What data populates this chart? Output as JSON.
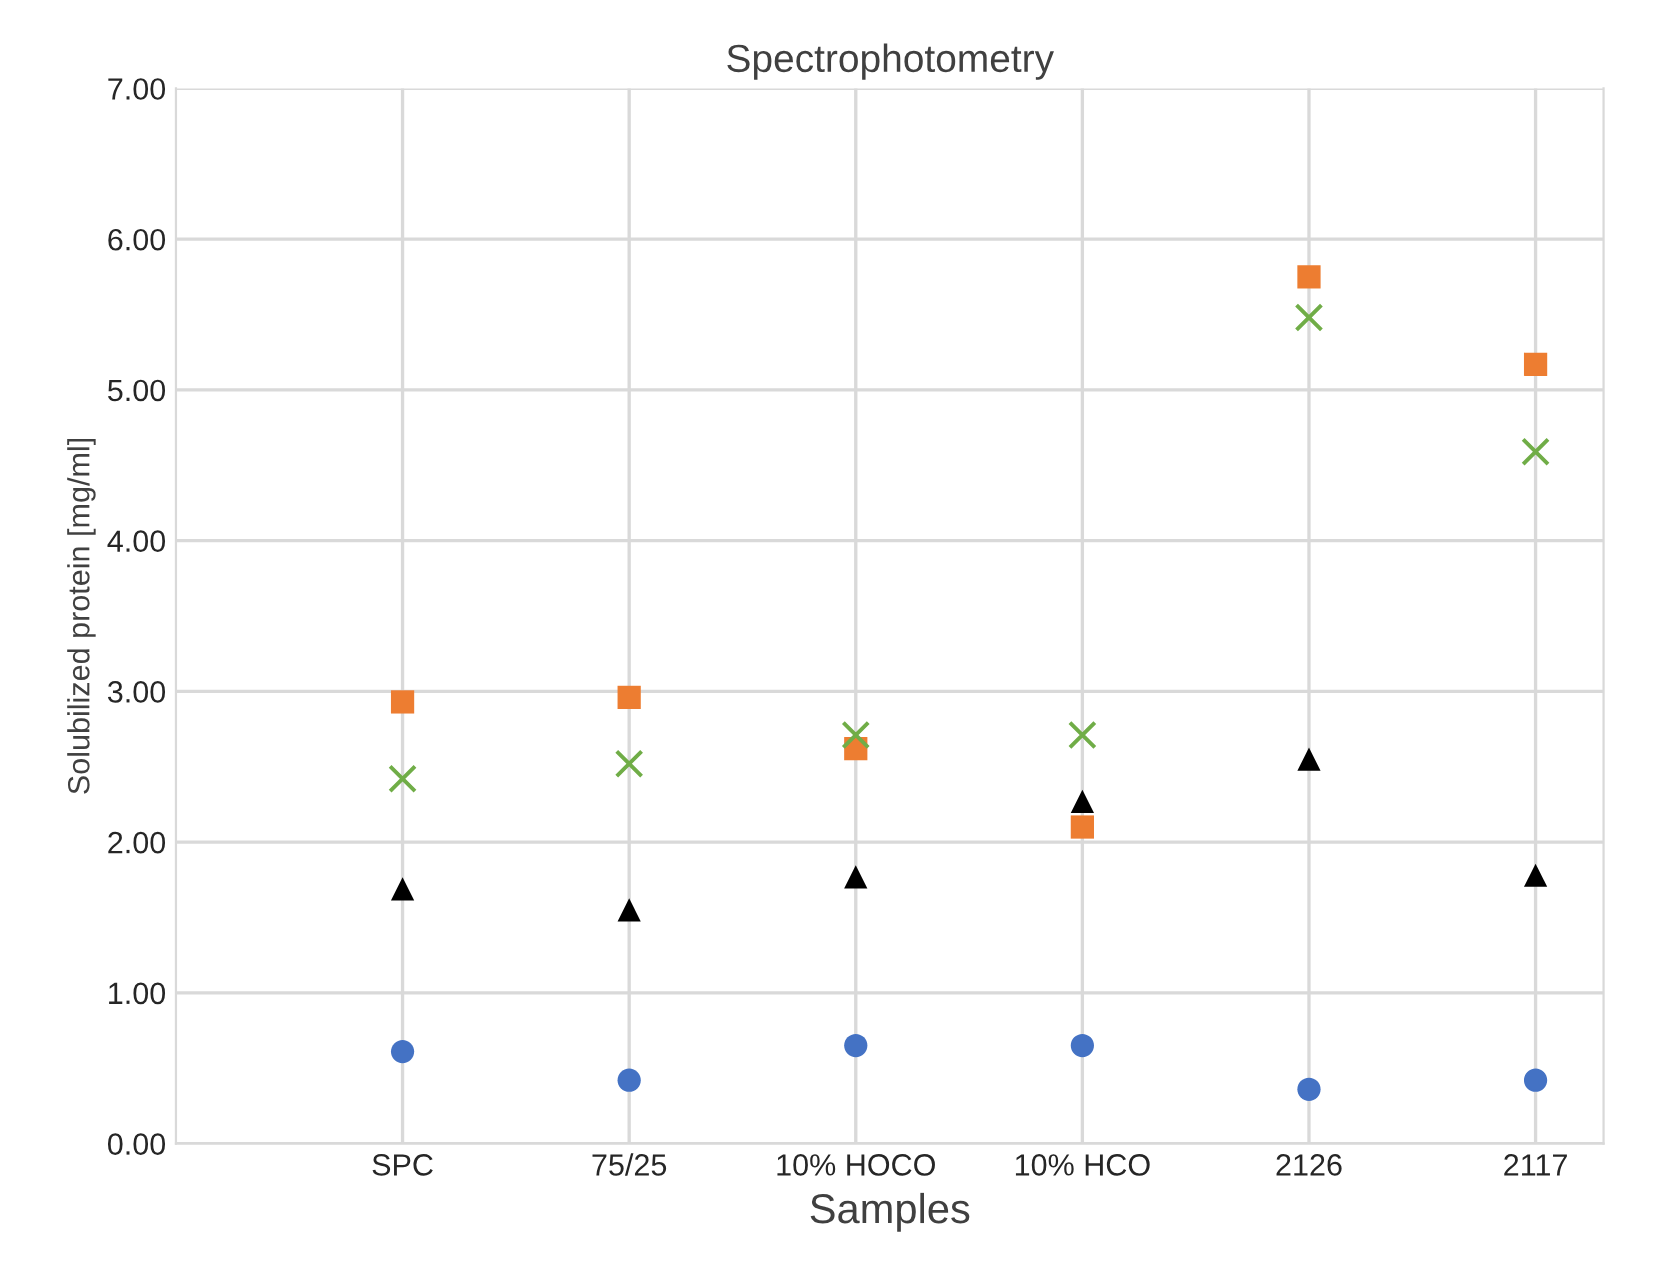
{
  "chart_data": {
    "type": "scatter",
    "title": "Spectrophotometry",
    "xlabel": "Samples",
    "ylabel": "Solubilized protein [mg/ml]",
    "categories": [
      "SPC",
      "75/25",
      "10% HOCO",
      "10% HCO",
      "2126",
      "2117"
    ],
    "series": [
      {
        "color": "#4472c4",
        "marker": "circle",
        "values": [
          0.61,
          0.42,
          0.65,
          0.65,
          0.36,
          0.42
        ]
      },
      {
        "color": "#ed7d31",
        "marker": "square",
        "values": [
          2.93,
          2.96,
          2.62,
          2.1,
          5.75,
          5.17
        ]
      },
      {
        "color": "#70ad47",
        "marker": "cross",
        "values": [
          2.42,
          2.52,
          2.71,
          2.71,
          5.48,
          4.59
        ]
      },
      {
        "color": "#000000",
        "marker": "triangle",
        "values": [
          1.69,
          1.55,
          1.77,
          2.27,
          2.55,
          1.78
        ]
      }
    ],
    "ylim": [
      0,
      7
    ],
    "yticks": [
      {
        "value": 0,
        "label": "0.00"
      },
      {
        "value": 1,
        "label": "1.00"
      },
      {
        "value": 2,
        "label": "2.00"
      },
      {
        "value": 3,
        "label": "3.00"
      },
      {
        "value": 4,
        "label": "4.00"
      },
      {
        "value": 5,
        "label": "5.00"
      },
      {
        "value": 6,
        "label": "6.00"
      },
      {
        "value": 7,
        "label": "7.00"
      }
    ],
    "grid": true,
    "legend": false
  }
}
